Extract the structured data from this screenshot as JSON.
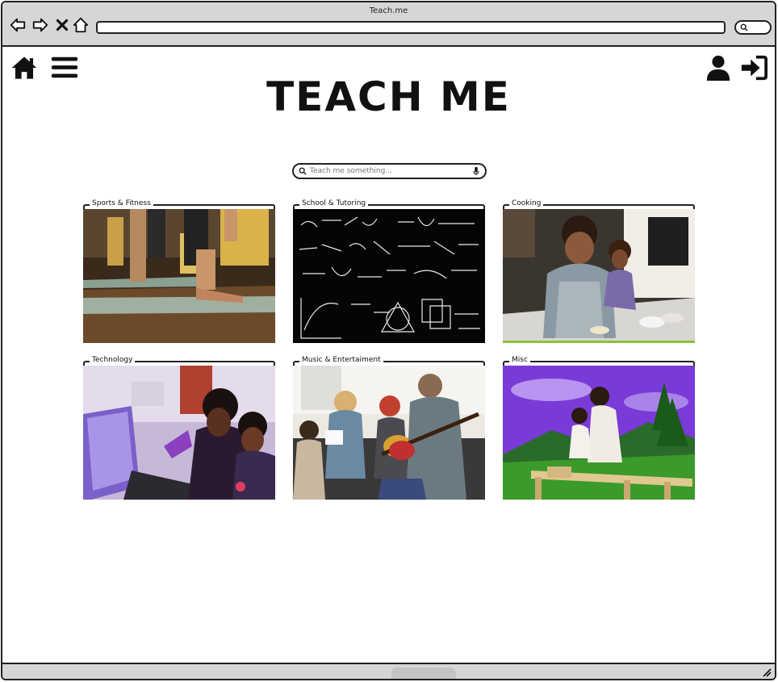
{
  "browser": {
    "title": "Teach.me",
    "address": ""
  },
  "header": {
    "home_icon": "home-icon",
    "menu_icon": "hamburger-menu-icon",
    "user_icon": "user-icon",
    "login_icon": "sign-in-icon"
  },
  "page": {
    "title": "TEACH ME"
  },
  "search": {
    "placeholder": "Teach me something...",
    "value": ""
  },
  "categories": [
    {
      "label": "Sports & Fitness"
    },
    {
      "label": "School & Tutoring"
    },
    {
      "label": "Cooking"
    },
    {
      "label": "Technology"
    },
    {
      "label": "Music & Entertaiment"
    },
    {
      "label": "Misc"
    }
  ]
}
